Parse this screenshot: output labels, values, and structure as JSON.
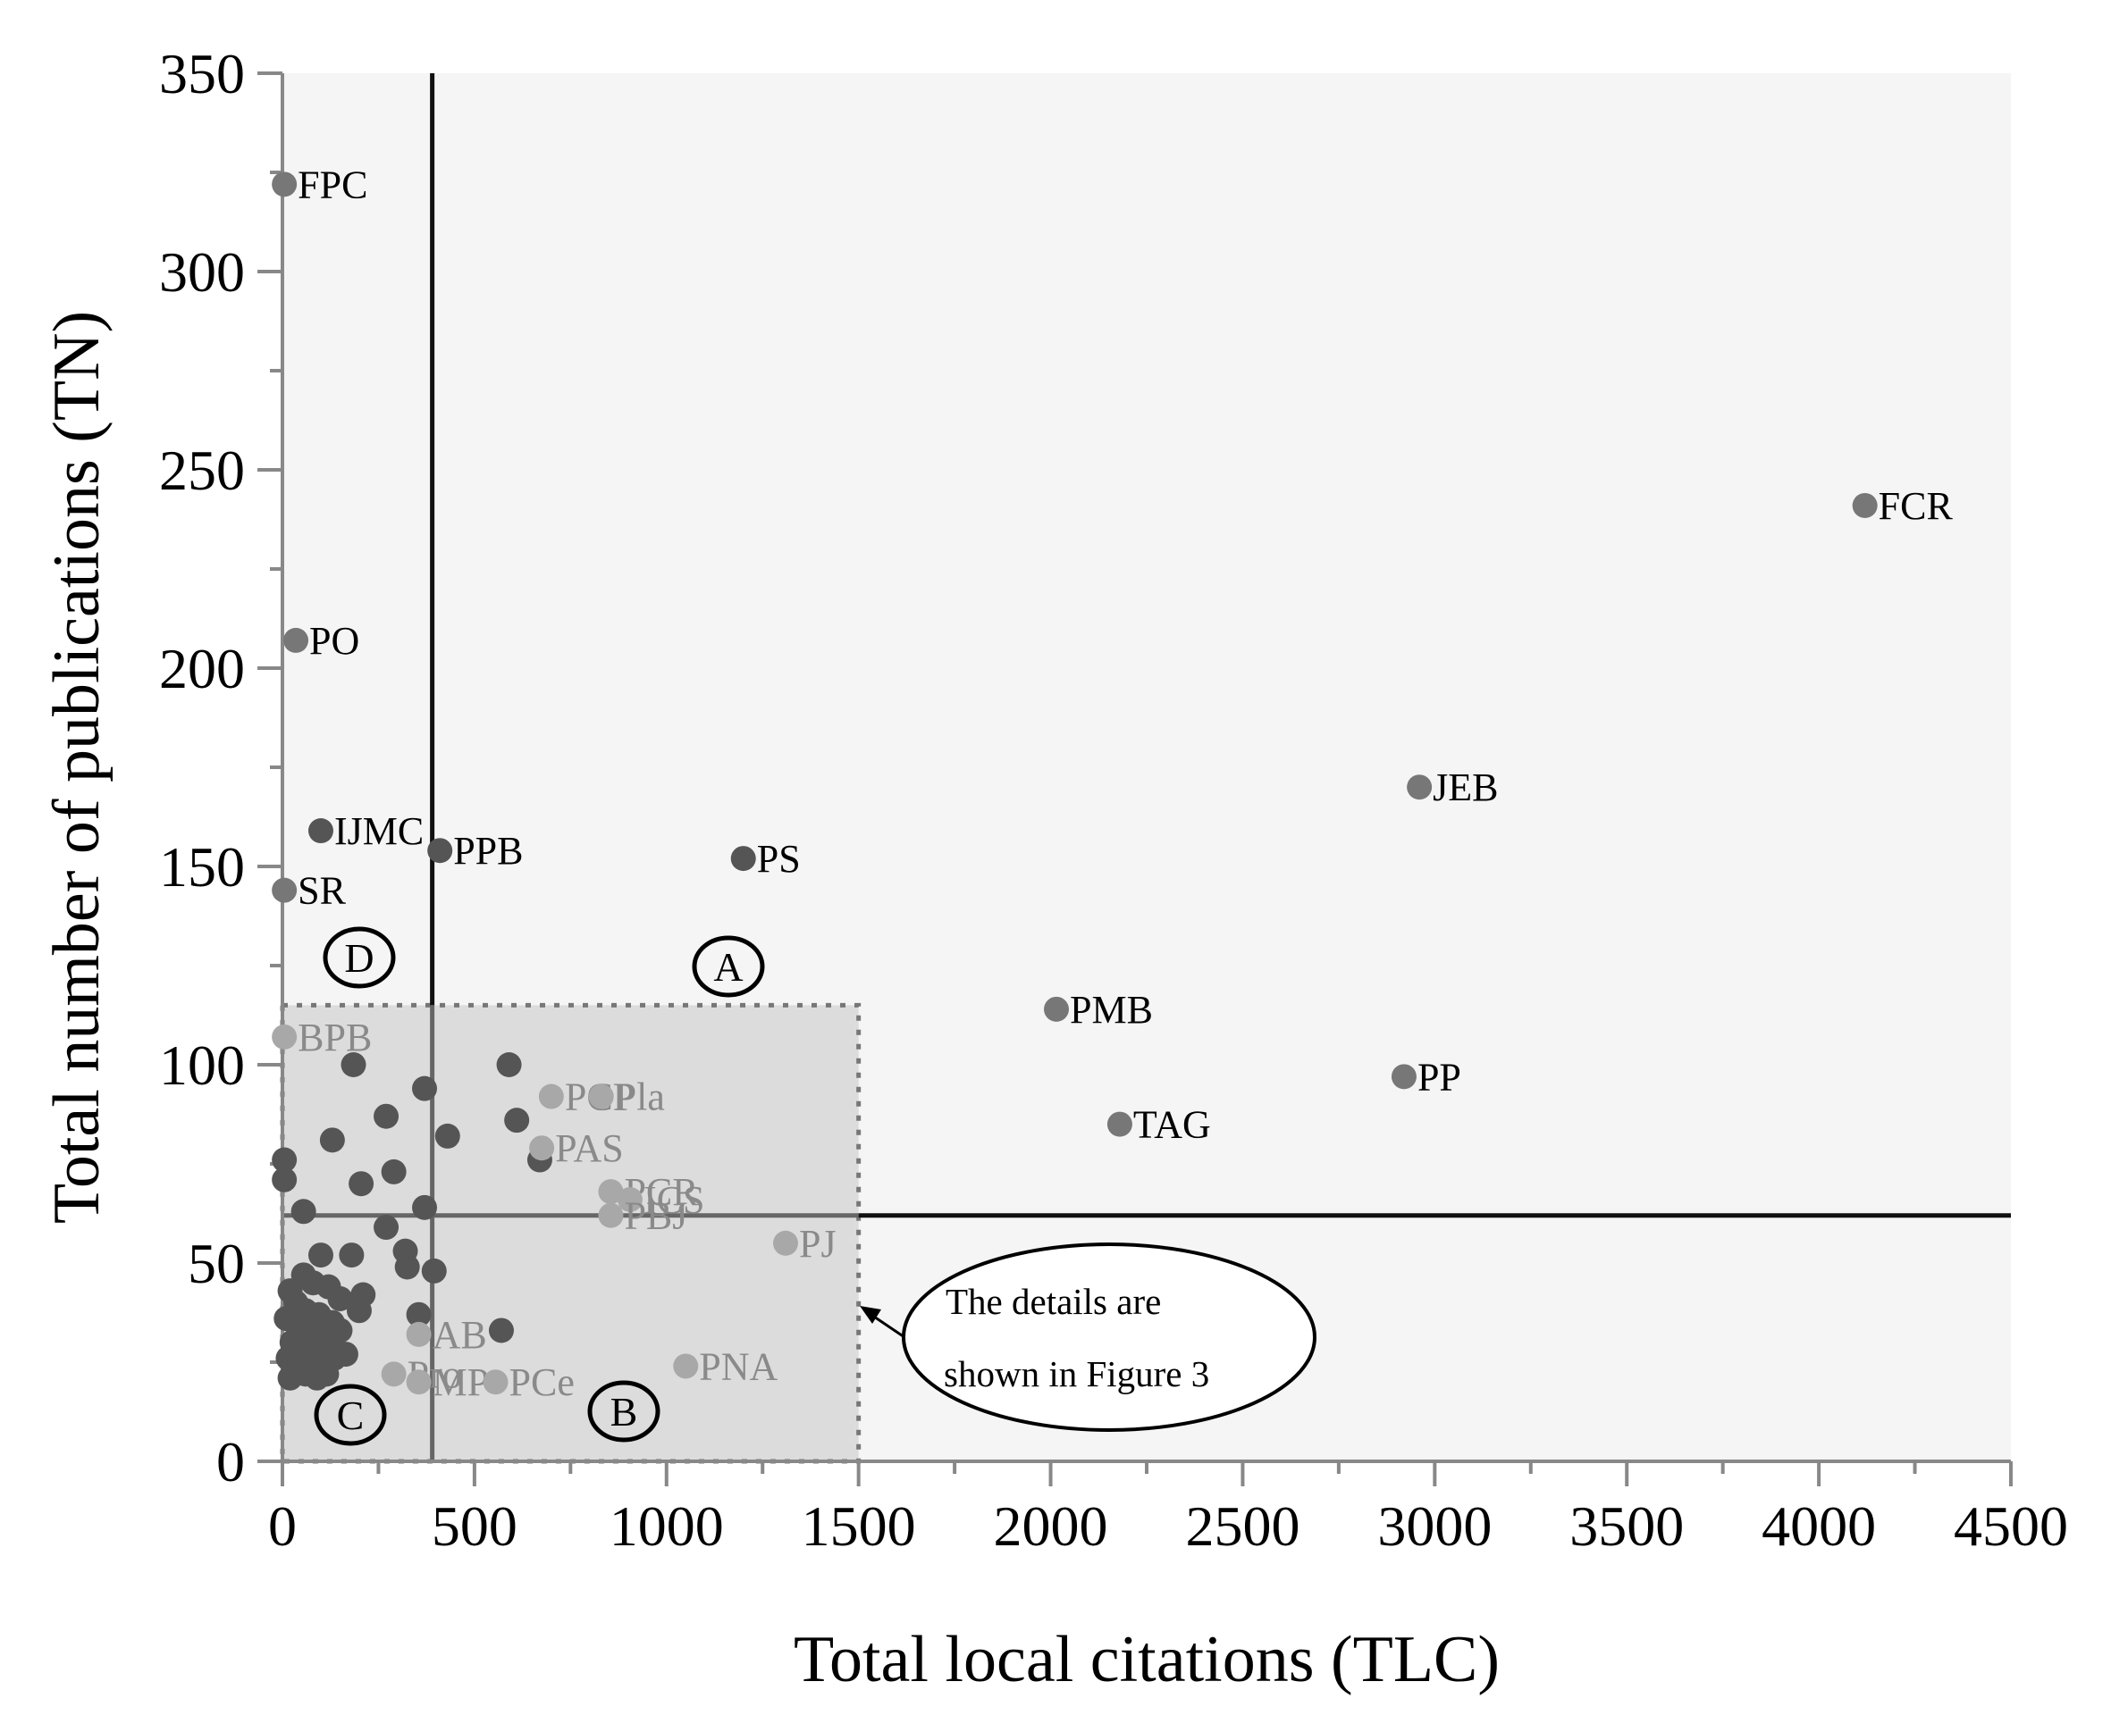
{
  "chart_data": {
    "type": "scatter",
    "title": "",
    "xlabel": "Total local citations (TLC)",
    "ylabel": "Total number of publications (TN)",
    "xlim": [
      0,
      4500
    ],
    "ylim": [
      0,
      350
    ],
    "xticks": [
      0,
      500,
      1000,
      1500,
      2000,
      2500,
      3000,
      3500,
      4000,
      4500
    ],
    "yticks": [
      0,
      50,
      100,
      150,
      200,
      250,
      300,
      350
    ],
    "grid": false,
    "colors": {
      "dark_point": "#555555",
      "mid_point": "#777777",
      "light_point": "#a8a8a8",
      "plot_bg": "#f5f5f5",
      "detail_box_bg": "#dcdcdc"
    },
    "threshold_lines": {
      "tlc": 390,
      "tn": 62
    },
    "detail_region": {
      "x": [
        0,
        1500
      ],
      "y": [
        0,
        115
      ]
    },
    "labeled_points": [
      {
        "label": "FPC",
        "tlc": 5,
        "tn": 322,
        "shade": "mid"
      },
      {
        "label": "PO",
        "tlc": 35,
        "tn": 207,
        "shade": "mid"
      },
      {
        "label": "IJMC",
        "tlc": 100,
        "tn": 159,
        "shade": "dark"
      },
      {
        "label": "PPB",
        "tlc": 410,
        "tn": 154,
        "shade": "dark"
      },
      {
        "label": "SR",
        "tlc": 5,
        "tn": 144,
        "shade": "mid"
      },
      {
        "label": "PS",
        "tlc": 1200,
        "tn": 152,
        "shade": "dark"
      },
      {
        "label": "FCR",
        "tlc": 4120,
        "tn": 241,
        "shade": "mid"
      },
      {
        "label": "JEB",
        "tlc": 2960,
        "tn": 170,
        "shade": "mid"
      },
      {
        "label": "PMB",
        "tlc": 2015,
        "tn": 114,
        "shade": "mid"
      },
      {
        "label": "PP",
        "tlc": 2920,
        "tn": 97,
        "shade": "mid"
      },
      {
        "label": "TAG",
        "tlc": 2180,
        "tn": 85,
        "shade": "mid"
      },
      {
        "label": "BPB",
        "tlc": 5,
        "tn": 107,
        "shade": "light"
      },
      {
        "label": "PCP",
        "tlc": 700,
        "tn": 92,
        "shade": "light"
      },
      {
        "label": "Pla",
        "tlc": 830,
        "tn": 92,
        "shade": "light"
      },
      {
        "label": "PAS",
        "tlc": 675,
        "tn": 79,
        "shade": "light"
      },
      {
        "label": "PCR",
        "tlc": 855,
        "tn": 68,
        "shade": "light"
      },
      {
        "label": "ICS",
        "tlc": 905,
        "tn": 66,
        "shade": "light"
      },
      {
        "label": "PBJ",
        "tlc": 855,
        "tn": 62,
        "shade": "light"
      },
      {
        "label": "PJ",
        "tlc": 1310,
        "tn": 55,
        "shade": "light"
      },
      {
        "label": "AB",
        "tlc": 355,
        "tn": 32,
        "shade": "light"
      },
      {
        "label": "PNA",
        "tlc": 1050,
        "tn": 24,
        "shade": "light"
      },
      {
        "label": "Pro",
        "tlc": 290,
        "tn": 22,
        "shade": "light"
      },
      {
        "label": "MP",
        "tlc": 355,
        "tn": 20,
        "shade": "light"
      },
      {
        "label": "PCe",
        "tlc": 555,
        "tn": 20,
        "shade": "light"
      }
    ],
    "unlabeled_points": [
      [
        185,
        100
      ],
      [
        370,
        94
      ],
      [
        590,
        100
      ],
      [
        130,
        81
      ],
      [
        270,
        87
      ],
      [
        430,
        82
      ],
      [
        610,
        86
      ],
      [
        290,
        73
      ],
      [
        205,
        70
      ],
      [
        670,
        76
      ],
      [
        5,
        76
      ],
      [
        5,
        71
      ],
      [
        55,
        63
      ],
      [
        370,
        64
      ],
      [
        270,
        59
      ],
      [
        320,
        53
      ],
      [
        325,
        49
      ],
      [
        395,
        48
      ],
      [
        180,
        52
      ],
      [
        100,
        52
      ],
      [
        55,
        47
      ],
      [
        80,
        45
      ],
      [
        120,
        44
      ],
      [
        150,
        41
      ],
      [
        200,
        38
      ],
      [
        210,
        42
      ],
      [
        355,
        37
      ],
      [
        570,
        33
      ],
      [
        20,
        43
      ],
      [
        35,
        40
      ],
      [
        60,
        38
      ],
      [
        10,
        36
      ],
      [
        40,
        34
      ],
      [
        75,
        33
      ],
      [
        110,
        32
      ],
      [
        150,
        33
      ],
      [
        25,
        30
      ],
      [
        55,
        29
      ],
      [
        85,
        28
      ],
      [
        120,
        30
      ],
      [
        165,
        27
      ],
      [
        15,
        26
      ],
      [
        45,
        25
      ],
      [
        70,
        24
      ],
      [
        100,
        25
      ],
      [
        135,
        26
      ],
      [
        30,
        22
      ],
      [
        60,
        22
      ],
      [
        90,
        21
      ],
      [
        20,
        21
      ],
      [
        115,
        22
      ],
      [
        50,
        33
      ],
      [
        95,
        37
      ],
      [
        130,
        35
      ],
      [
        30,
        37
      ]
    ],
    "zones": [
      "A",
      "B",
      "C",
      "D"
    ],
    "annotation": [
      "The details are",
      "shown in Figure 3"
    ]
  }
}
